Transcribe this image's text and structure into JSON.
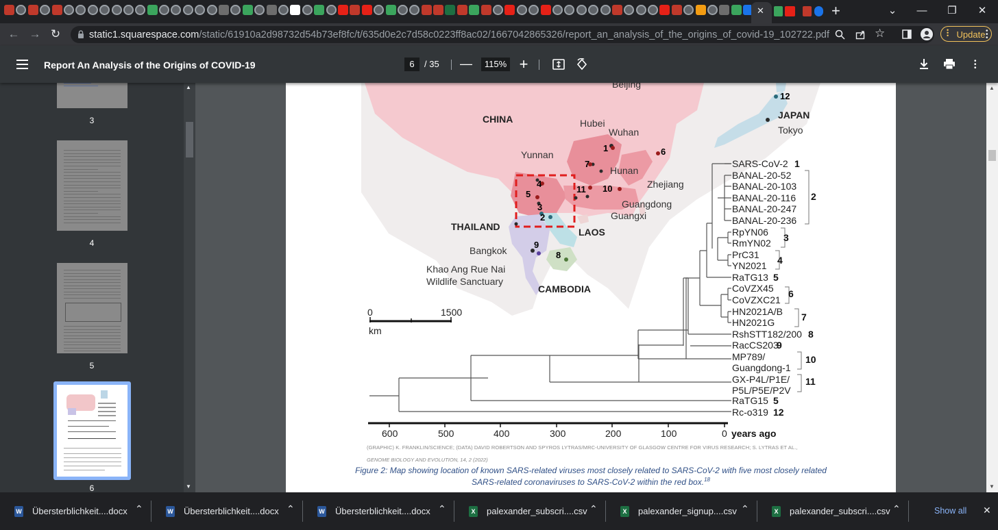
{
  "browser": {
    "tab_close_glyph": "✕",
    "new_tab_glyph": "+",
    "url_host": "static1.squarespace.com",
    "url_path": "/static/61910a2d98732d54b73ef8fc/t/635d0e2c7d58c0223ff8ac02/1667042865326/report_an_analysis_of_the_origins_of_covid-19_102722.pdf",
    "update_label": "Update"
  },
  "pdf": {
    "title": "Report An Analysis of the Origins of COVID-19",
    "current_page": "6",
    "total_pages": "/ 35",
    "zoom": "115%",
    "thumbnails": [
      {
        "label": "3"
      },
      {
        "label": "4"
      },
      {
        "label": "5"
      },
      {
        "label": "6"
      }
    ]
  },
  "figure": {
    "countries": {
      "china": "CHINA",
      "japan": "JAPAN",
      "thailand": "THAILAND",
      "laos": "LAOS",
      "cambodia": "CAMBODIA"
    },
    "places": {
      "beijing": "Beijing",
      "hubei": "Hubei",
      "wuhan": "Wuhan",
      "yunnan": "Yunnan",
      "hunan": "Hunan",
      "zhejiang": "Zhejiang",
      "guangdong": "Guangdong",
      "guangxi": "Guangxi",
      "tokyo": "Tokyo",
      "bangkok": "Bangkok",
      "khao1": "Khao Ang Rue Nai",
      "khao2": "Wildlife Sanctuary"
    },
    "map_numbers": [
      "1",
      "2",
      "3",
      "4",
      "5",
      "6",
      "7",
      "8",
      "9",
      "10",
      "11",
      "12"
    ],
    "scale_zero": "0",
    "scale_max": "1500",
    "scale_unit": "km",
    "tree": {
      "leaves": [
        "SARS-CoV-2",
        "BANAL-20-52",
        "BANAL-20-103",
        "BANAL-20-116",
        "BANAL-20-247",
        "BANAL-20-236",
        "RpYN06",
        "RmYN02",
        "PrC31",
        "YN2021",
        "RaTG13",
        "CoVZX45",
        "CoVZXC21",
        "HN2021A/B",
        "HN2021G",
        "RshSTT182/200",
        "RacCS203",
        "MP789/",
        "Guangdong-1",
        "GX-P4L/P1E/",
        "P5L/P5E/P2V",
        "RaTG15",
        "Rc-o319"
      ],
      "groups": [
        "1",
        "2",
        "3",
        "4",
        "5",
        "6",
        "7",
        "8",
        "9",
        "10",
        "11",
        "5",
        "12"
      ],
      "axis_ticks": [
        "600",
        "500",
        "400",
        "300",
        "200",
        "100",
        "0"
      ],
      "axis_unit": "years ago"
    },
    "credit": "(GRAPHIC) K. FRANKLIN/SCIENCE; (DATA) DAVID ROBERTSON AND SPYROS LYTRAS/MRC-UNIVERSITY OF GLASGOW CENTRE FOR VIRUS RESEARCH; S. LYTRAS ET AL.,",
    "credit2": "GENOME BIOLOGY AND EVOLUTION, 14, 2 (2022)",
    "caption1": "Figure 2: Map showing location of known SARS-related viruses most closely related to SARS-CoV-2 with five most closely related",
    "caption2": "SARS-related coronaviruses to SARS-CoV-2 within the red box.",
    "caption_ref": "18"
  },
  "downloads": [
    {
      "name": "Übersterblichkeit....docx",
      "type": "W",
      "color": "#2b579a"
    },
    {
      "name": "Übersterblichkeit....docx",
      "type": "W",
      "color": "#2b579a"
    },
    {
      "name": "Übersterblichkeit....docx",
      "type": "W",
      "color": "#2b579a"
    },
    {
      "name": "palexander_subscri....csv",
      "type": "X",
      "color": "#1d6f42"
    },
    {
      "name": "palexander_signup....csv",
      "type": "X",
      "color": "#1d6f42"
    },
    {
      "name": "palexander_subscri....csv",
      "type": "X",
      "color": "#1d6f42"
    }
  ],
  "show_all": "Show all",
  "shelf_close_glyph": "✕"
}
